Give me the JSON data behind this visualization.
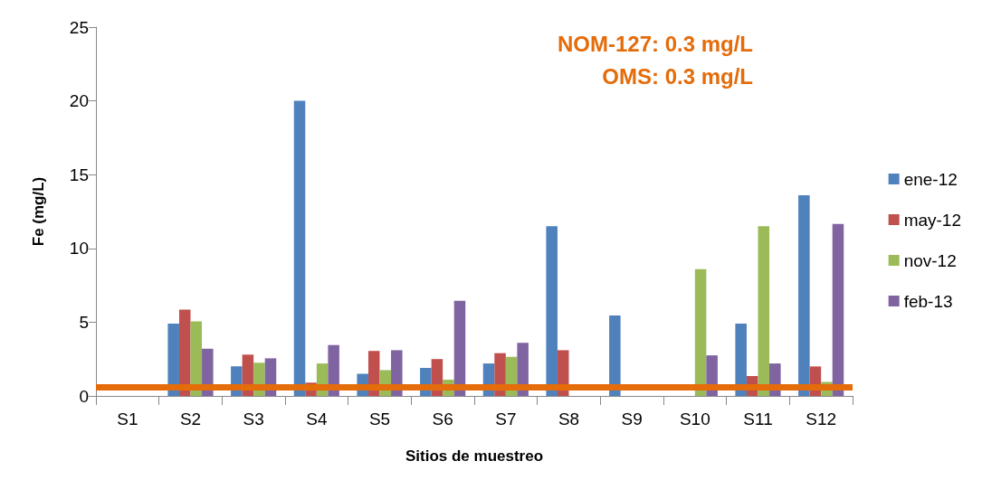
{
  "chart_data": {
    "type": "bar",
    "xlabel": "Sitios de muestreo",
    "ylabel": "Fe (mg/L)",
    "categories": [
      "S1",
      "S2",
      "S3",
      "S4",
      "S5",
      "S6",
      "S7",
      "S8",
      "S9",
      "S10",
      "S11",
      "S12"
    ],
    "series": [
      {
        "name": "ene-12",
        "color": "#4f81bd",
        "values": [
          null,
          4.9,
          2.0,
          20,
          1.5,
          1.9,
          2.2,
          11.5,
          5.45,
          null,
          4.9,
          13.6
        ]
      },
      {
        "name": "may-12",
        "color": "#c0504d",
        "values": [
          null,
          5.85,
          2.8,
          0.9,
          3.05,
          2.5,
          2.9,
          3.1,
          null,
          null,
          1.35,
          2.0
        ]
      },
      {
        "name": "nov-12",
        "color": "#9bbb59",
        "values": [
          null,
          5.05,
          2.25,
          2.2,
          1.75,
          1.1,
          2.65,
          null,
          null,
          8.6,
          11.5,
          0.95
        ]
      },
      {
        "name": "feb-13",
        "color": "#8064a2",
        "values": [
          null,
          3.2,
          2.55,
          3.45,
          3.1,
          6.45,
          3.6,
          null,
          null,
          2.75,
          2.2,
          11.65
        ]
      }
    ],
    "ylim": [
      0,
      25
    ],
    "yticks": [
      0,
      5,
      10,
      15,
      20,
      25
    ],
    "grid": false,
    "legend": "right",
    "ref_lines": [
      {
        "axis": "y",
        "value": 0.6,
        "label": null,
        "color": "#e46c0a"
      }
    ],
    "annotations": [
      "NOM-127: 0.3 mg/L",
      "OMS: 0.3 mg/L"
    ]
  }
}
